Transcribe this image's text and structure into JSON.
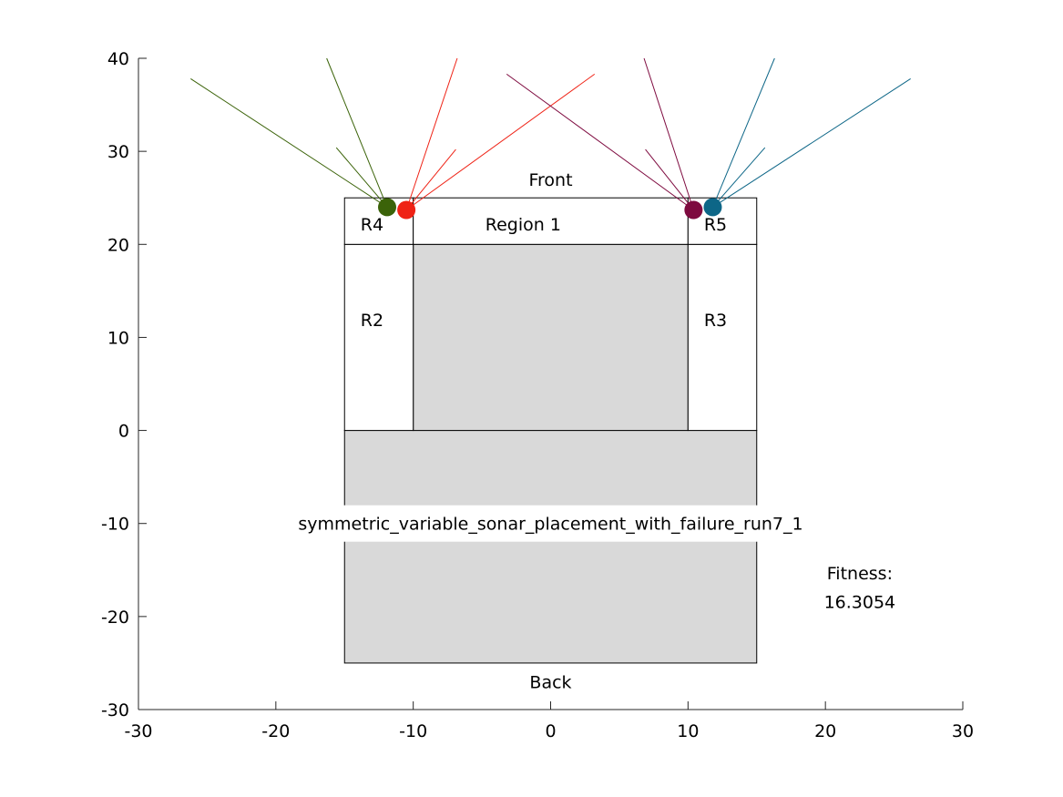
{
  "chart_data": {
    "type": "scatter",
    "xlim": [
      -30,
      30
    ],
    "ylim": [
      -30,
      40
    ],
    "x_ticks": [
      "-30",
      "-20",
      "-10",
      "0",
      "10",
      "20",
      "30"
    ],
    "y_ticks": [
      "-30",
      "-20",
      "-10",
      "0",
      "10",
      "20",
      "30",
      "40"
    ],
    "grid": false,
    "regions": [
      {
        "name": "body_lower",
        "x0": -15,
        "y0": -25,
        "x1": 15,
        "y1": 0,
        "fill": "#d9d9d9"
      },
      {
        "name": "region-1-core",
        "x0": -10,
        "y0": 0,
        "x1": 10,
        "y1": 20,
        "fill": "#d9d9d9"
      },
      {
        "name": "r2",
        "x0": -15,
        "y0": 0,
        "x1": -10,
        "y1": 20,
        "fill": "#ffffff"
      },
      {
        "name": "r3",
        "x0": 10,
        "y0": 0,
        "x1": 15,
        "y1": 20,
        "fill": "#ffffff"
      },
      {
        "name": "r4",
        "x0": -15,
        "y0": 20,
        "x1": -10,
        "y1": 25,
        "fill": "#ffffff"
      },
      {
        "name": "region-1",
        "x0": -10,
        "y0": 20,
        "x1": 10,
        "y1": 25,
        "fill": "#ffffff"
      },
      {
        "name": "r5",
        "x0": 10,
        "y0": 20,
        "x1": 15,
        "y1": 25,
        "fill": "#ffffff"
      }
    ],
    "labels": [
      {
        "name": "front",
        "text": "Front",
        "x": 0,
        "y": 27
      },
      {
        "name": "back",
        "text": "Back",
        "x": 0,
        "y": -27
      },
      {
        "name": "r4",
        "text": "R4",
        "x": -13,
        "y": 22.2
      },
      {
        "name": "region-1",
        "text": "Region 1",
        "x": -2,
        "y": 22.2
      },
      {
        "name": "r5",
        "text": "R5",
        "x": 12,
        "y": 22.2
      },
      {
        "name": "r2",
        "text": "R2",
        "x": -13,
        "y": 11.9
      },
      {
        "name": "r3",
        "text": "R3",
        "x": 12,
        "y": 11.9
      },
      {
        "name": "fitness-label",
        "text": "Fitness:",
        "x": 22.5,
        "y": -15.3
      },
      {
        "name": "fitness-value",
        "text": "16.3054",
        "x": 22.5,
        "y": -18.4
      }
    ],
    "run_name": "symmetric_variable_sonar_placement_with_failure_run7_1",
    "sonars": [
      {
        "x": -11.9,
        "y": 24.0,
        "color": "#3b6309",
        "rays": [
          [
            -26.2,
            37.8
          ],
          [
            -16.3,
            40.0
          ],
          [
            -15.6,
            30.4
          ]
        ]
      },
      {
        "x": -10.5,
        "y": 23.7,
        "color": "#ef2215",
        "rays": [
          [
            -6.8,
            40.0
          ],
          [
            -6.9,
            30.2
          ],
          [
            3.2,
            38.3
          ]
        ]
      },
      {
        "x": 10.4,
        "y": 23.7,
        "color": "#7e0a3f",
        "rays": [
          [
            -3.2,
            38.3
          ],
          [
            6.9,
            30.2
          ],
          [
            6.8,
            40.0
          ]
        ]
      },
      {
        "x": 11.8,
        "y": 24.0,
        "color": "#0d6687",
        "rays": [
          [
            15.6,
            30.4
          ],
          [
            16.3,
            40.0
          ],
          [
            26.2,
            37.8
          ]
        ]
      }
    ]
  }
}
